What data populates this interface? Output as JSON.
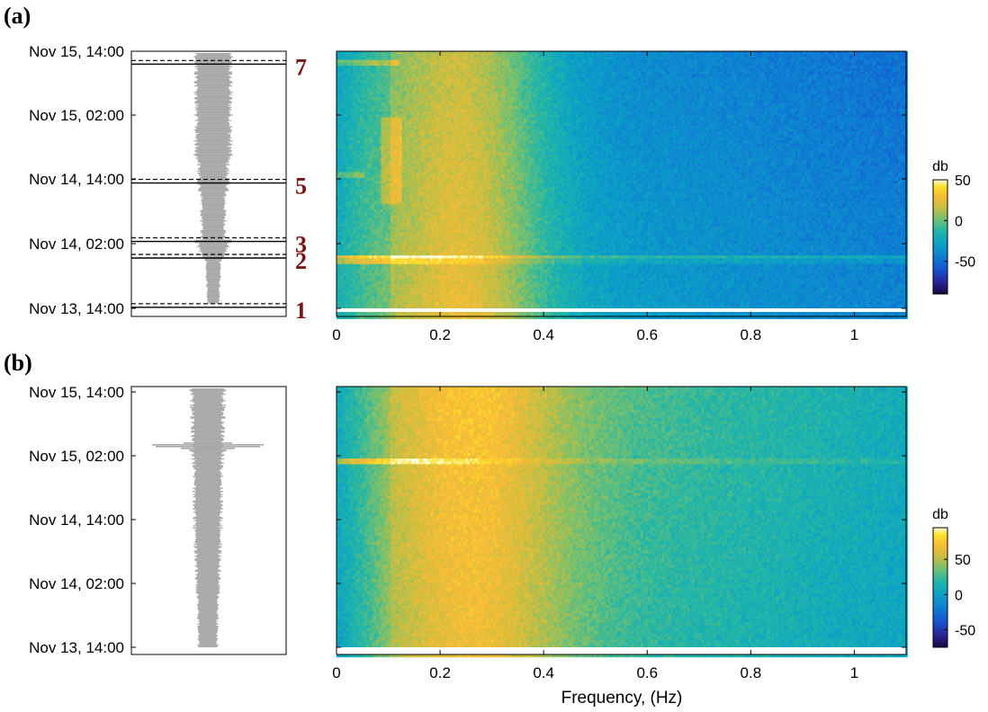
{
  "chart_data": [
    {
      "panel": "(a)",
      "type": "heatmap",
      "xlabel": "",
      "xlim": [
        0,
        1.1
      ],
      "xticks": [
        "0",
        "0.2",
        "0.4",
        "0.6",
        "0.8",
        "1"
      ],
      "yticks": [
        "Nov 13, 14:00",
        "Nov 14, 02:00",
        "Nov 14, 14:00",
        "Nov 15, 02:00",
        "Nov 15, 14:00"
      ],
      "colorbar": {
        "label": "db",
        "range": [
          -90,
          50
        ],
        "ticks": [
          "50",
          "0",
          "-50"
        ]
      },
      "events": [
        {
          "label": "1",
          "time_h": 0.2
        },
        {
          "label": "2",
          "time_h": 9.4
        },
        {
          "label": "3",
          "time_h": 12.5
        },
        {
          "label": "5",
          "time_h": 23.4
        },
        {
          "label": "7",
          "time_h": 45.6
        }
      ],
      "waveform": {
        "color": "#a8a8a8"
      }
    },
    {
      "panel": "(b)",
      "type": "heatmap",
      "xlabel": "Frequency, (Hz)",
      "xlim": [
        0,
        1.1
      ],
      "xticks": [
        "0",
        "0.2",
        "0.4",
        "0.6",
        "0.8",
        "1"
      ],
      "yticks": [
        "Nov 13, 14:00",
        "Nov 14, 02:00",
        "Nov 14, 14:00",
        "Nov 15, 02:00",
        "Nov 15, 14:00"
      ],
      "colorbar": {
        "label": "db",
        "range": [
          -75,
          95
        ],
        "ticks": [
          "50",
          "0",
          "-50"
        ]
      },
      "events": [],
      "waveform": {
        "color": "#a8a8a8"
      }
    }
  ]
}
